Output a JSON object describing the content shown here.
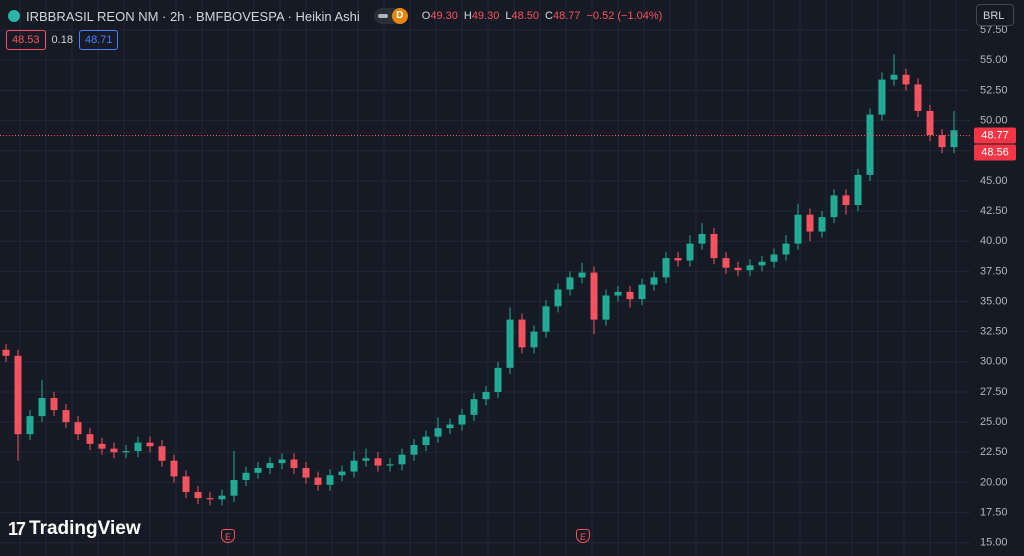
{
  "chart_data": {
    "type": "candlestick",
    "title": "IRBBRASIL REON NM · 2h · BMFBOVESPA · Heikin Ashi",
    "badge": "D",
    "ohlc_legend": [
      {
        "label": "O",
        "value": "49.30"
      },
      {
        "label": "H",
        "value": "49.30"
      },
      {
        "label": "L",
        "value": "48.50"
      },
      {
        "label": "C",
        "value": "48.77"
      }
    ],
    "change": "−0.52 (−1.04%)",
    "bid": "48.53",
    "spread": "0.18",
    "ask": "48.71",
    "currency": "BRL",
    "watermark": "TradingView",
    "event_markers": [
      "E",
      "E"
    ],
    "up_color": "#22ab94",
    "down_color": "#f7525f",
    "grid": true,
    "ylim": [
      13.9,
      60
    ],
    "yticks": [
      {
        "value": 15,
        "label": "15.00"
      },
      {
        "value": 17.5,
        "label": "17.50"
      },
      {
        "value": 20,
        "label": "20.00"
      },
      {
        "value": 22.5,
        "label": "22.50"
      },
      {
        "value": 25,
        "label": "25.00"
      },
      {
        "value": 27.5,
        "label": "27.50"
      },
      {
        "value": 30,
        "label": "30.00"
      },
      {
        "value": 32.5,
        "label": "32.50"
      },
      {
        "value": 35,
        "label": "35.00"
      },
      {
        "value": 37.5,
        "label": "37.50"
      },
      {
        "value": 40,
        "label": "40.00"
      },
      {
        "value": 42.5,
        "label": "42.50"
      },
      {
        "value": 45,
        "label": "45.00"
      },
      {
        "value": 47.5,
        "label": "47.50"
      },
      {
        "value": 50,
        "label": "50.00"
      },
      {
        "value": 52.5,
        "label": "52.50"
      },
      {
        "value": 55,
        "label": "55.00"
      },
      {
        "value": 57.5,
        "label": "57.50"
      }
    ],
    "last_price": 48.77,
    "prev_close": 48.56,
    "open": [
      31,
      30.5,
      24,
      25.5,
      27,
      26,
      25,
      24,
      23.2,
      22.8,
      22.5,
      22.6,
      23.3,
      23,
      21.8,
      20.5,
      19.2,
      18.7,
      18.6,
      18.9,
      20.2,
      20.8,
      21.2,
      21.6,
      21.9,
      21.2,
      20.4,
      19.8,
      20.6,
      20.9,
      21.8,
      22,
      21.4,
      21.5,
      22.3,
      23.1,
      23.8,
      24.5,
      24.8,
      25.6,
      26.9,
      27.5,
      29.5,
      33.5,
      31.2,
      32.5,
      34.6,
      36,
      37,
      37.4,
      33.5,
      35.5,
      35.8,
      35.2,
      36.4,
      37,
      38.6,
      38.4,
      39.8,
      40.6,
      38.6,
      37.8,
      37.6,
      38,
      38.3,
      38.9,
      39.8,
      42.2,
      40.8,
      42,
      43.8,
      43,
      45.5,
      50.5,
      53.4,
      53.8,
      53,
      50.8,
      48.8,
      47.8
    ],
    "high": [
      31.5,
      31,
      26,
      28.5,
      27.5,
      26.5,
      25.5,
      24.5,
      23.7,
      23.3,
      23.1,
      23.8,
      23.8,
      23.5,
      22.3,
      21,
      19.7,
      19.2,
      19.4,
      22.6,
      21.3,
      21.7,
      22.1,
      22.4,
      22.4,
      21.7,
      20.9,
      21.1,
      21.4,
      22.6,
      22.8,
      22.5,
      22,
      22.8,
      23.6,
      24.3,
      25.4,
      25.3,
      26.1,
      27.4,
      28,
      30,
      34.5,
      34,
      33,
      35.1,
      36.5,
      37.5,
      38.2,
      37.9,
      36,
      36.3,
      36.3,
      36.9,
      37.5,
      39.1,
      39.1,
      40.5,
      41.5,
      41.1,
      39.1,
      38.3,
      38.5,
      38.8,
      39.4,
      40.5,
      43.1,
      42.7,
      42.5,
      44.3,
      44.3,
      46,
      51,
      54,
      55.5,
      54.3,
      53.5,
      51.3,
      49.3,
      50.8
    ],
    "low": [
      30,
      21.8,
      23.5,
      25,
      25.5,
      24.5,
      23.5,
      22.7,
      22.3,
      22,
      22,
      22.1,
      22.5,
      21.3,
      20,
      18.7,
      18.2,
      18.1,
      18.1,
      18.4,
      19.7,
      20.3,
      20.7,
      21.1,
      20.7,
      19.9,
      19.3,
      19.3,
      20.1,
      20.4,
      21.3,
      20.9,
      20.9,
      21,
      21.8,
      22.6,
      23.3,
      24,
      24.3,
      25.1,
      26.4,
      27,
      29,
      30.7,
      30.7,
      32,
      34.1,
      35.5,
      36.5,
      32.3,
      33,
      35,
      34.5,
      34.7,
      35.9,
      36.5,
      37.9,
      37.9,
      39.3,
      38.1,
      37.3,
      37.1,
      37.1,
      37.5,
      37.8,
      38.4,
      39.3,
      40,
      40.3,
      41.5,
      42.2,
      42.5,
      45,
      50,
      52.9,
      52.5,
      50.3,
      48.3,
      47.3,
      47.3
    ],
    "close": [
      30.5,
      24,
      25.5,
      27,
      26,
      25,
      24,
      23.2,
      22.8,
      22.5,
      22.6,
      23.3,
      23,
      21.8,
      20.5,
      19.2,
      18.7,
      18.6,
      18.9,
      20.2,
      20.8,
      21.2,
      21.6,
      21.9,
      21.2,
      20.4,
      19.8,
      20.6,
      20.9,
      21.8,
      22,
      21.4,
      21.5,
      22.3,
      23.1,
      23.8,
      24.5,
      24.8,
      25.6,
      26.9,
      27.5,
      29.5,
      33.5,
      31.2,
      32.5,
      34.6,
      36,
      37,
      37.4,
      33.5,
      35.5,
      35.8,
      35.2,
      36.4,
      37,
      38.6,
      38.4,
      39.8,
      40.6,
      38.6,
      37.8,
      37.6,
      38,
      38.3,
      38.9,
      39.8,
      42.2,
      40.8,
      42,
      43.8,
      43,
      45.5,
      50.5,
      53.4,
      53.8,
      53,
      50.8,
      48.8,
      47.8,
      49.2
    ]
  }
}
